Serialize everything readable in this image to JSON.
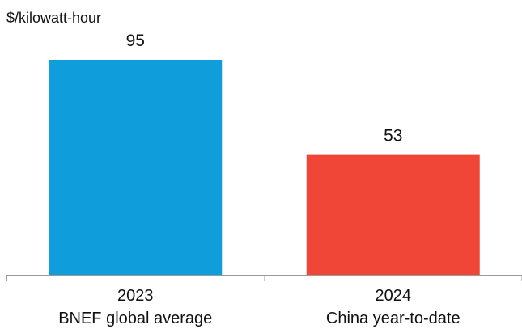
{
  "chart_data": {
    "type": "bar",
    "unit_label": "$/kilowatt-hour",
    "categories": [
      {
        "year": "2023",
        "label": "BNEF global average"
      },
      {
        "year": "2024",
        "label": "China year-to-date"
      }
    ],
    "values": [
      95,
      53
    ],
    "colors": [
      "#0f9ddb",
      "#ef4638"
    ],
    "ylim": [
      0,
      100
    ],
    "grid": false,
    "legend": "none"
  }
}
